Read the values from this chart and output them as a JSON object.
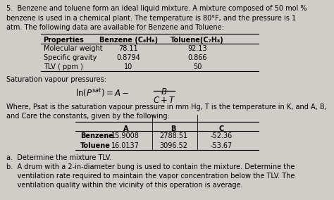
{
  "intro_text": [
    "5.  Benzene and toluene form an ideal liquid mixture. A mixture composed of 50 mol %",
    "benzene is used in a chemical plant. The temperature is 80°F, and the pressure is 1",
    "atm. The following data are available for Benzene and Toluene:"
  ],
  "table1_headers": [
    "Properties",
    "Benzene (C₆H₆)",
    "Toluene(C₇H₈)"
  ],
  "table1_rows": [
    [
      "Molecular weight",
      "78.11",
      "92.13"
    ],
    [
      "Specific gravity",
      "0.8794",
      "0.866"
    ],
    [
      "TLV ( ppm )",
      "10",
      "50"
    ]
  ],
  "saturation_label": "Saturation vapour pressures:",
  "where_text": [
    "Where, Psat is the saturation vapour pressure in mm Hg, T is the temperature in K, and A, B,",
    "and Care the constants, given by the following:"
  ],
  "table2_headers": [
    "",
    "A",
    "B",
    "C"
  ],
  "table2_rows": [
    [
      "Benzene",
      "15.9008",
      "2788.51",
      "-52.36"
    ],
    [
      "Toluene",
      "16.0137",
      "3096.52",
      "-53.67"
    ]
  ],
  "questions": [
    "a.  Determine the mixture TLV.",
    "b.  A drum with a 2-in-diameter bung is used to contain the mixture. Determine the",
    "     ventilation rate required to maintain the vapor concentration below the TLV. The",
    "     ventilation quality within the vicinity of this operation is average."
  ],
  "bg_color": "#d0cdc8",
  "text_color": "#000000",
  "font_size": 7.0
}
